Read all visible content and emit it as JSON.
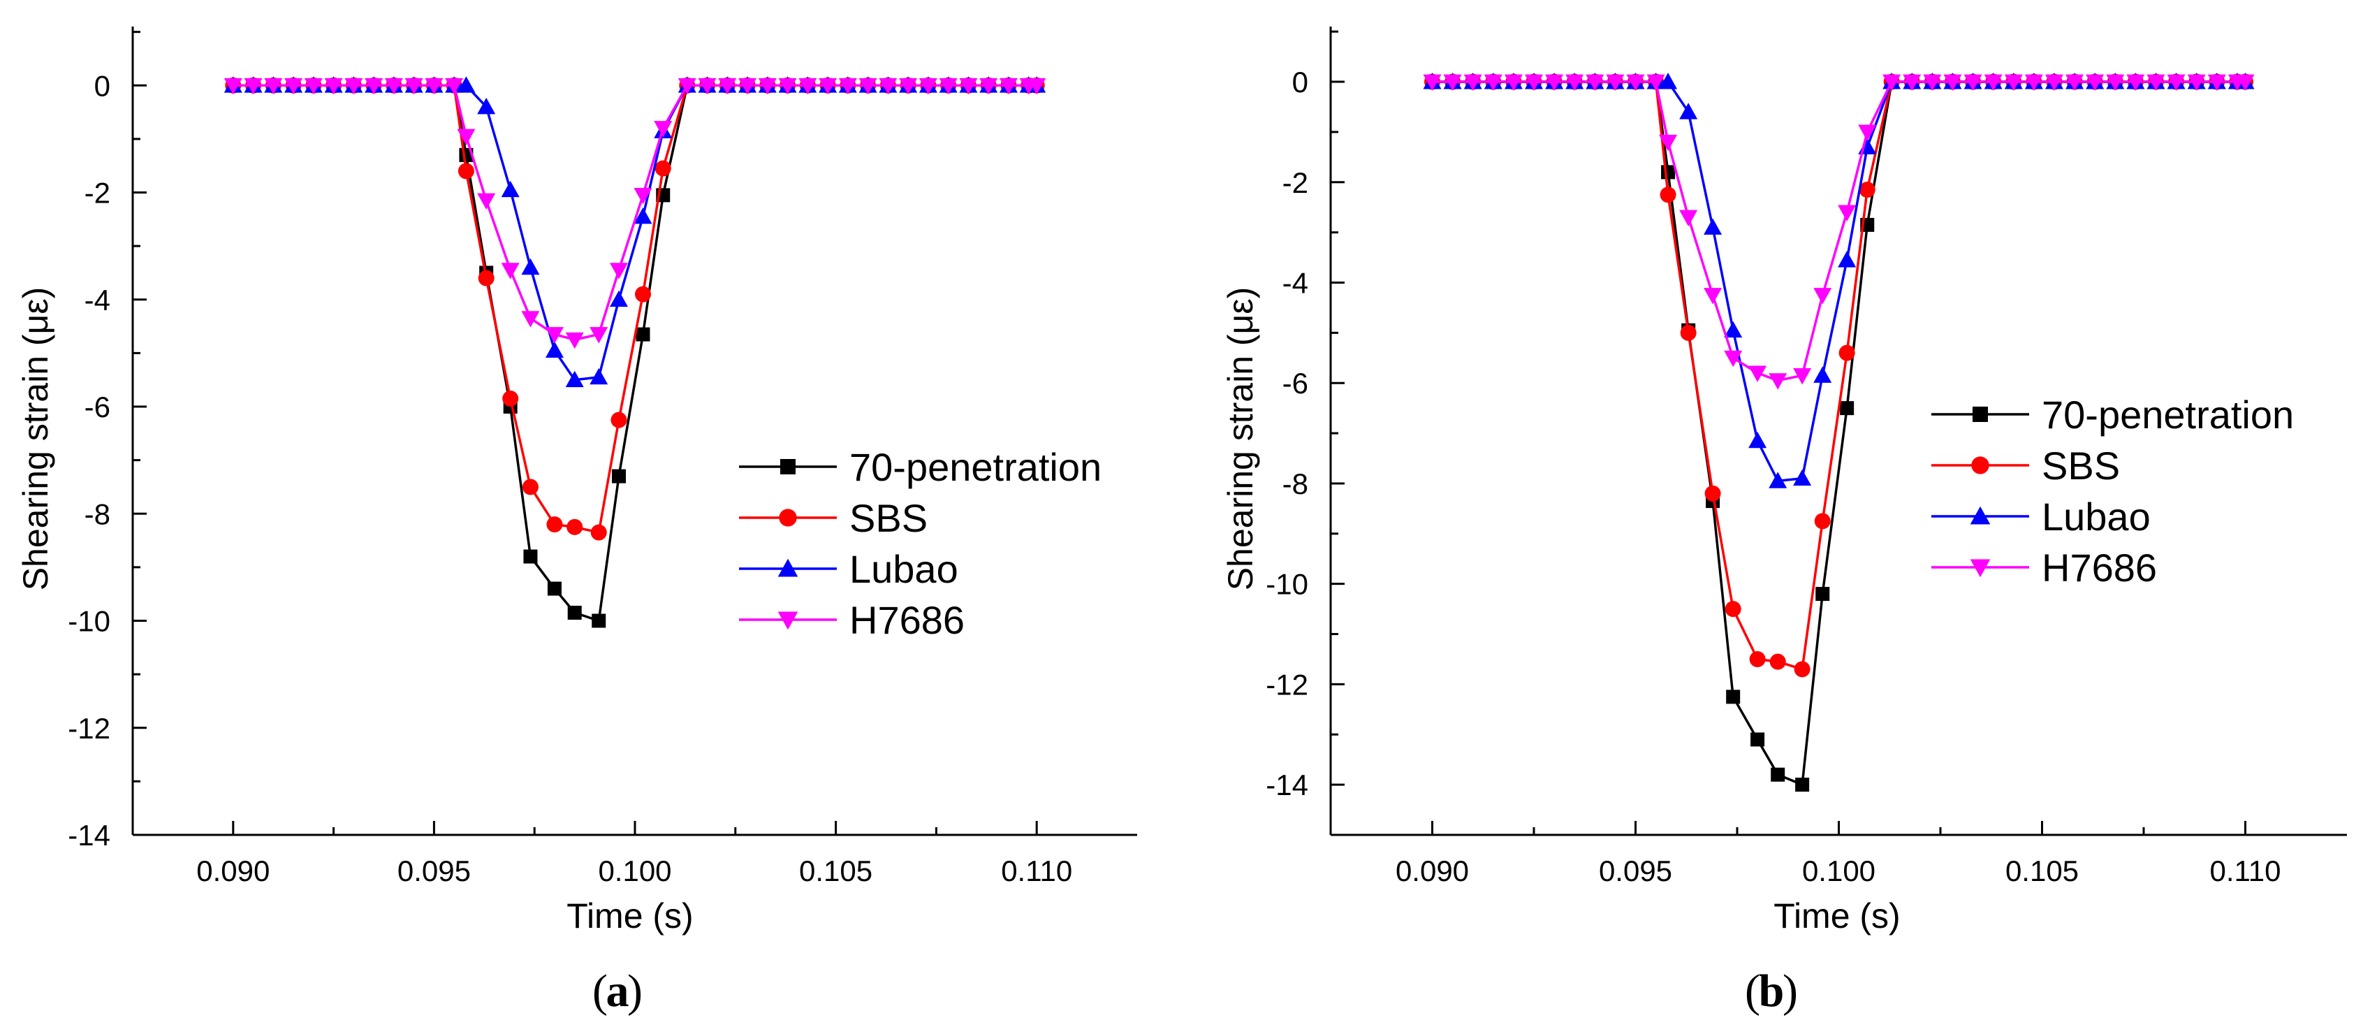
{
  "chart_data": [
    {
      "type": "line",
      "panel_label": "a",
      "xlabel": "Time (s)",
      "ylabel": "Shearing strain (με)",
      "xlim": [
        0.0875,
        0.1125
      ],
      "ylim": [
        -14,
        1.1
      ],
      "xticks": [
        0.09,
        0.095,
        0.1,
        0.105,
        0.11
      ],
      "xtick_labels": [
        "0.090",
        "0.095",
        "0.100",
        "0.105",
        "0.110"
      ],
      "yticks": [
        0,
        -2,
        -4,
        -6,
        -8,
        -10,
        -12,
        -14
      ],
      "ytick_labels": [
        "0",
        "-2",
        "-4",
        "-6",
        "-8",
        "-10",
        "-12",
        "-14"
      ],
      "legend_position": "center-right",
      "series": [
        {
          "name": "70-penetration",
          "color": "#000000",
          "marker": "square",
          "x": [
            0.09,
            0.0905,
            0.091,
            0.0915,
            0.092,
            0.0925,
            0.093,
            0.0935,
            0.094,
            0.0945,
            0.095,
            0.0955,
            0.0958,
            0.0963,
            0.0969,
            0.0974,
            0.098,
            0.0985,
            0.0991,
            0.0996,
            0.1002,
            0.1007,
            0.1013,
            0.1018,
            0.1023,
            0.1028,
            0.1033,
            0.1038,
            0.1043,
            0.1048,
            0.1053,
            0.1058,
            0.1063,
            0.1068,
            0.1073,
            0.1078,
            0.1083,
            0.1088,
            0.1093,
            0.1098,
            0.11
          ],
          "y": [
            0,
            0,
            0,
            0,
            0,
            0,
            0,
            0,
            0,
            0,
            0,
            0,
            -1.3,
            -3.5,
            -6.0,
            -8.8,
            -9.4,
            -9.85,
            -10.0,
            -7.3,
            -4.65,
            -2.05,
            0,
            0,
            0,
            0,
            0,
            0,
            0,
            0,
            0,
            0,
            0,
            0,
            0,
            0,
            0,
            0,
            0,
            0,
            0
          ]
        },
        {
          "name": "SBS",
          "color": "#ff0000",
          "marker": "circle",
          "x": [
            0.09,
            0.0905,
            0.091,
            0.0915,
            0.092,
            0.0925,
            0.093,
            0.0935,
            0.094,
            0.0945,
            0.095,
            0.0955,
            0.0958,
            0.0963,
            0.0969,
            0.0974,
            0.098,
            0.0985,
            0.0991,
            0.0996,
            0.1002,
            0.1007,
            0.1013,
            0.1018,
            0.1023,
            0.1028,
            0.1033,
            0.1038,
            0.1043,
            0.1048,
            0.1053,
            0.1058,
            0.1063,
            0.1068,
            0.1073,
            0.1078,
            0.1083,
            0.1088,
            0.1093,
            0.1098,
            0.11
          ],
          "y": [
            0,
            0,
            0,
            0,
            0,
            0,
            0,
            0,
            0,
            0,
            0,
            0,
            -1.6,
            -3.6,
            -5.85,
            -7.5,
            -8.2,
            -8.25,
            -8.35,
            -6.25,
            -3.9,
            -1.55,
            0,
            0,
            0,
            0,
            0,
            0,
            0,
            0,
            0,
            0,
            0,
            0,
            0,
            0,
            0,
            0,
            0,
            0,
            0
          ]
        },
        {
          "name": "Lubao",
          "color": "#0000ff",
          "marker": "triangle-up",
          "x": [
            0.09,
            0.0905,
            0.091,
            0.0915,
            0.092,
            0.0925,
            0.093,
            0.0935,
            0.094,
            0.0945,
            0.095,
            0.0955,
            0.0958,
            0.0963,
            0.0969,
            0.0974,
            0.098,
            0.0985,
            0.0991,
            0.0996,
            0.1002,
            0.1007,
            0.1013,
            0.1018,
            0.1023,
            0.1028,
            0.1033,
            0.1038,
            0.1043,
            0.1048,
            0.1053,
            0.1058,
            0.1063,
            0.1068,
            0.1073,
            0.1078,
            0.1083,
            0.1088,
            0.1093,
            0.1098,
            0.11
          ],
          "y": [
            0,
            0,
            0,
            0,
            0,
            0,
            0,
            0,
            0,
            0,
            0,
            0,
            0,
            -0.4,
            -1.95,
            -3.4,
            -4.95,
            -5.5,
            -5.45,
            -4.0,
            -2.45,
            -0.85,
            0,
            0,
            0,
            0,
            0,
            0,
            0,
            0,
            0,
            0,
            0,
            0,
            0,
            0,
            0,
            0,
            0,
            0,
            0
          ]
        },
        {
          "name": "H7686",
          "color": "#ff00ff",
          "marker": "triangle-down",
          "x": [
            0.09,
            0.0905,
            0.091,
            0.0915,
            0.092,
            0.0925,
            0.093,
            0.0935,
            0.094,
            0.0945,
            0.095,
            0.0955,
            0.0958,
            0.0963,
            0.0969,
            0.0974,
            0.098,
            0.0985,
            0.0991,
            0.0996,
            0.1002,
            0.1007,
            0.1013,
            0.1018,
            0.1023,
            0.1028,
            0.1033,
            0.1038,
            0.1043,
            0.1048,
            0.1053,
            0.1058,
            0.1063,
            0.1068,
            0.1073,
            0.1078,
            0.1083,
            0.1088,
            0.1093,
            0.1098,
            0.11
          ],
          "y": [
            0,
            0,
            0,
            0,
            0,
            0,
            0,
            0,
            0,
            0,
            0,
            0,
            -0.95,
            -2.15,
            -3.45,
            -4.35,
            -4.65,
            -4.75,
            -4.65,
            -3.45,
            -2.05,
            -0.8,
            0,
            0,
            0,
            0,
            0,
            0,
            0,
            0,
            0,
            0,
            0,
            0,
            0,
            0,
            0,
            0,
            0,
            0,
            0
          ]
        }
      ]
    },
    {
      "type": "line",
      "panel_label": "b",
      "xlabel": "Time (s)",
      "ylabel": "Shearing strain (με)",
      "xlim": [
        0.0875,
        0.1125
      ],
      "ylim": [
        -15,
        1.1
      ],
      "xticks": [
        0.09,
        0.095,
        0.1,
        0.105,
        0.11
      ],
      "xtick_labels": [
        "0.090",
        "0.095",
        "0.100",
        "0.105",
        "0.110"
      ],
      "yticks": [
        0,
        -2,
        -4,
        -6,
        -8,
        -10,
        -12,
        -14
      ],
      "ytick_labels": [
        "0",
        "-2",
        "-4",
        "-6",
        "-8",
        "-10",
        "-12",
        "-14"
      ],
      "legend_position": "center-right",
      "series": [
        {
          "name": "70-penetration",
          "color": "#000000",
          "marker": "square",
          "x": [
            0.09,
            0.0905,
            0.091,
            0.0915,
            0.092,
            0.0925,
            0.093,
            0.0935,
            0.094,
            0.0945,
            0.095,
            0.0955,
            0.0958,
            0.0963,
            0.0969,
            0.0974,
            0.098,
            0.0985,
            0.0991,
            0.0996,
            0.1002,
            0.1007,
            0.1013,
            0.1018,
            0.1023,
            0.1028,
            0.1033,
            0.1038,
            0.1043,
            0.1048,
            0.1053,
            0.1058,
            0.1063,
            0.1068,
            0.1073,
            0.1078,
            0.1083,
            0.1088,
            0.1093,
            0.1098,
            0.11
          ],
          "y": [
            0,
            0,
            0,
            0,
            0,
            0,
            0,
            0,
            0,
            0,
            0,
            0,
            -1.8,
            -4.95,
            -8.35,
            -12.25,
            -13.1,
            -13.8,
            -14.0,
            -10.2,
            -6.5,
            -2.85,
            0,
            0,
            0,
            0,
            0,
            0,
            0,
            0,
            0,
            0,
            0,
            0,
            0,
            0,
            0,
            0,
            0,
            0,
            0
          ]
        },
        {
          "name": "SBS",
          "color": "#ff0000",
          "marker": "circle",
          "x": [
            0.09,
            0.0905,
            0.091,
            0.0915,
            0.092,
            0.0925,
            0.093,
            0.0935,
            0.094,
            0.0945,
            0.095,
            0.0955,
            0.0958,
            0.0963,
            0.0969,
            0.0974,
            0.098,
            0.0985,
            0.0991,
            0.0996,
            0.1002,
            0.1007,
            0.1013,
            0.1018,
            0.1023,
            0.1028,
            0.1033,
            0.1038,
            0.1043,
            0.1048,
            0.1053,
            0.1058,
            0.1063,
            0.1068,
            0.1073,
            0.1078,
            0.1083,
            0.1088,
            0.1093,
            0.1098,
            0.11
          ],
          "y": [
            0,
            0,
            0,
            0,
            0,
            0,
            0,
            0,
            0,
            0,
            0,
            0,
            -2.25,
            -5.0,
            -8.2,
            -10.5,
            -11.5,
            -11.55,
            -11.7,
            -8.75,
            -5.4,
            -2.15,
            0,
            0,
            0,
            0,
            0,
            0,
            0,
            0,
            0,
            0,
            0,
            0,
            0,
            0,
            0,
            0,
            0,
            0,
            0
          ]
        },
        {
          "name": "Lubao",
          "color": "#0000ff",
          "marker": "triangle-up",
          "x": [
            0.09,
            0.0905,
            0.091,
            0.0915,
            0.092,
            0.0925,
            0.093,
            0.0935,
            0.094,
            0.0945,
            0.095,
            0.0955,
            0.0958,
            0.0963,
            0.0969,
            0.0974,
            0.098,
            0.0985,
            0.0991,
            0.0996,
            0.1002,
            0.1007,
            0.1013,
            0.1018,
            0.1023,
            0.1028,
            0.1033,
            0.1038,
            0.1043,
            0.1048,
            0.1053,
            0.1058,
            0.1063,
            0.1068,
            0.1073,
            0.1078,
            0.1083,
            0.1088,
            0.1093,
            0.1098,
            0.11
          ],
          "y": [
            0,
            0,
            0,
            0,
            0,
            0,
            0,
            0,
            0,
            0,
            0,
            0,
            0,
            -0.6,
            -2.9,
            -4.95,
            -7.15,
            -7.95,
            -7.9,
            -5.85,
            -3.55,
            -1.3,
            0,
            0,
            0,
            0,
            0,
            0,
            0,
            0,
            0,
            0,
            0,
            0,
            0,
            0,
            0,
            0,
            0,
            0,
            0
          ]
        },
        {
          "name": "H7686",
          "color": "#ff00ff",
          "marker": "triangle-down",
          "x": [
            0.09,
            0.0905,
            0.091,
            0.0915,
            0.092,
            0.0925,
            0.093,
            0.0935,
            0.094,
            0.0945,
            0.095,
            0.0955,
            0.0958,
            0.0963,
            0.0969,
            0.0974,
            0.098,
            0.0985,
            0.0991,
            0.0996,
            0.1002,
            0.1007,
            0.1013,
            0.1018,
            0.1023,
            0.1028,
            0.1033,
            0.1038,
            0.1043,
            0.1048,
            0.1053,
            0.1058,
            0.1063,
            0.1068,
            0.1073,
            0.1078,
            0.1083,
            0.1088,
            0.1093,
            0.1098,
            0.11
          ],
          "y": [
            0,
            0,
            0,
            0,
            0,
            0,
            0,
            0,
            0,
            0,
            0,
            0,
            -1.2,
            -2.7,
            -4.25,
            -5.5,
            -5.8,
            -5.95,
            -5.85,
            -4.25,
            -2.6,
            -1.0,
            0,
            0,
            0,
            0,
            0,
            0,
            0,
            0,
            0,
            0,
            0,
            0,
            0,
            0,
            0,
            0,
            0,
            0,
            0
          ]
        }
      ]
    }
  ]
}
